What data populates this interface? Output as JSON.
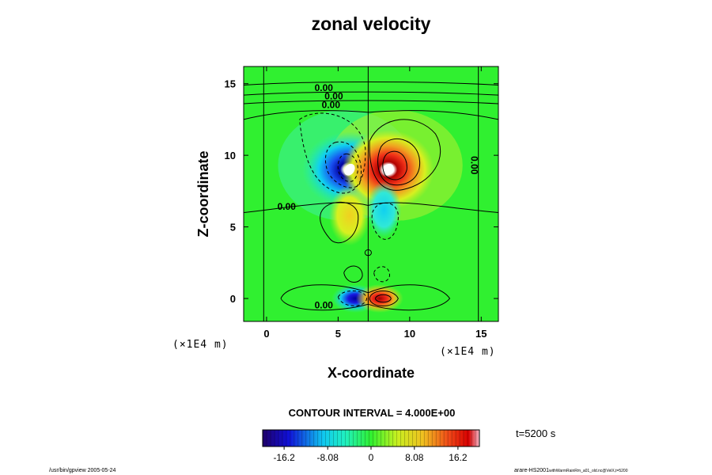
{
  "chart_data": {
    "type": "heatmap",
    "title": "zonal velocity",
    "xlabel": "X-coordinate",
    "ylabel": "Z-coordinate",
    "x_unit": "(×1E4 m)",
    "z_unit": "(×1E4 m)",
    "xlim": [
      -1.6,
      16.2
    ],
    "ylim": [
      -1.6,
      16.2
    ],
    "x_ticks": [
      0,
      5,
      10,
      15
    ],
    "y_ticks": [
      0,
      5,
      10,
      15
    ],
    "contour_interval_text": "CONTOUR INTERVAL = 4.000E+00",
    "contour_labels": [
      "0.00",
      "0.00",
      "0.00",
      "0.00",
      "0.00",
      "0.00"
    ],
    "colorbar": {
      "range": [
        -20.2,
        20.2
      ],
      "ticks": [
        -16.2,
        -8.08,
        0,
        8.08,
        16.2
      ],
      "tick_labels": [
        "-16.2",
        "-8.08",
        "0",
        "8.08",
        "16.2"
      ]
    },
    "time_label": "t=5200 s",
    "features": [
      {
        "kind": "vortex",
        "sign": "negative",
        "x": 5.8,
        "z": 9.0,
        "peak": -20
      },
      {
        "kind": "vortex",
        "sign": "positive",
        "x": 8.5,
        "z": 9.0,
        "peak": 20
      },
      {
        "kind": "lobe",
        "sign": "positive",
        "x": 5.8,
        "z": 5.8,
        "peak": 6
      },
      {
        "kind": "lobe",
        "sign": "negative",
        "x": 8.2,
        "z": 6.2,
        "peak": -6
      },
      {
        "kind": "vortex",
        "sign": "negative",
        "x": 6.2,
        "z": 0.0,
        "peak": -18
      },
      {
        "kind": "vortex",
        "sign": "positive",
        "x": 7.9,
        "z": 0.0,
        "peak": 18
      }
    ]
  },
  "footer": {
    "left": "/usr/bin/gpview 2005-05-24",
    "right_main": "arare-HS2001",
    "right_sub": "withWarmRainRm_a01_old.nc@VelX,t=5200"
  }
}
